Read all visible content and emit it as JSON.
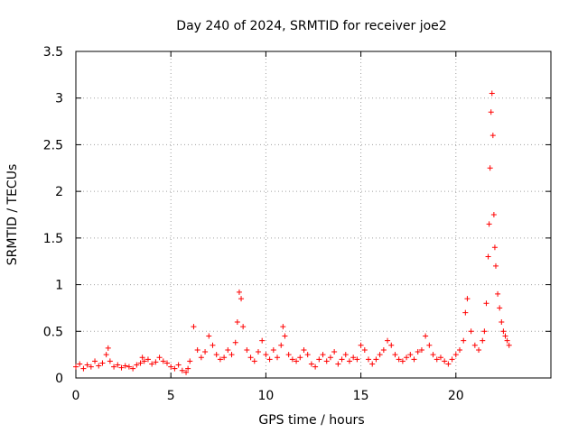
{
  "chart_data": {
    "type": "scatter",
    "title": "Day 240 of 2024, SRMTID for receiver joe2",
    "xlabel": "GPS time / hours",
    "ylabel": "SRMTID / TECUs",
    "xlim": [
      0,
      25
    ],
    "ylim": [
      0,
      3.5
    ],
    "xticks": [
      0,
      5,
      10,
      15,
      20
    ],
    "xtick_labels": [
      "0",
      "5",
      "10",
      "15",
      "20"
    ],
    "yticks": [
      0,
      0.5,
      1,
      1.5,
      2,
      2.5,
      3,
      3.5
    ],
    "ytick_labels": [
      "0",
      "0.5",
      "1",
      "1.5",
      "2",
      "2.5",
      "3",
      "3.5"
    ],
    "grid": true,
    "marker": "+",
    "color": "#ff0000",
    "series": [
      {
        "name": "SRMTID",
        "x": [
          0.0,
          0.2,
          0.4,
          0.6,
          0.8,
          1.0,
          1.2,
          1.4,
          1.6,
          1.7,
          1.8,
          2.0,
          2.2,
          2.4,
          2.6,
          2.8,
          3.0,
          3.2,
          3.4,
          3.5,
          3.6,
          3.8,
          4.0,
          4.2,
          4.4,
          4.6,
          4.8,
          5.0,
          5.2,
          5.4,
          5.6,
          5.8,
          5.9,
          6.0,
          6.2,
          6.4,
          6.6,
          6.8,
          7.0,
          7.2,
          7.4,
          7.6,
          7.8,
          8.0,
          8.2,
          8.4,
          8.5,
          8.6,
          8.7,
          8.8,
          9.0,
          9.2,
          9.4,
          9.6,
          9.8,
          10.0,
          10.2,
          10.4,
          10.6,
          10.8,
          10.9,
          11.0,
          11.2,
          11.4,
          11.6,
          11.8,
          12.0,
          12.2,
          12.4,
          12.6,
          12.8,
          13.0,
          13.2,
          13.4,
          13.6,
          13.8,
          14.0,
          14.2,
          14.4,
          14.6,
          14.8,
          15.0,
          15.2,
          15.4,
          15.6,
          15.8,
          16.0,
          16.2,
          16.4,
          16.6,
          16.8,
          17.0,
          17.2,
          17.4,
          17.6,
          17.8,
          18.0,
          18.2,
          18.4,
          18.6,
          18.8,
          19.0,
          19.2,
          19.4,
          19.6,
          19.8,
          20.0,
          20.2,
          20.4,
          20.5,
          20.6,
          20.8,
          21.0,
          21.2,
          21.4,
          21.5,
          21.6,
          21.7,
          21.75,
          21.8,
          21.85,
          21.9,
          21.95,
          22.0,
          22.05,
          22.1,
          22.2,
          22.3,
          22.4,
          22.5,
          22.6,
          22.7,
          22.8
        ],
        "y": [
          0.12,
          0.15,
          0.1,
          0.14,
          0.12,
          0.18,
          0.13,
          0.16,
          0.25,
          0.32,
          0.18,
          0.12,
          0.14,
          0.11,
          0.13,
          0.12,
          0.1,
          0.14,
          0.16,
          0.22,
          0.18,
          0.2,
          0.15,
          0.17,
          0.22,
          0.18,
          0.16,
          0.12,
          0.1,
          0.14,
          0.08,
          0.06,
          0.1,
          0.18,
          0.55,
          0.3,
          0.22,
          0.28,
          0.45,
          0.35,
          0.25,
          0.2,
          0.22,
          0.3,
          0.25,
          0.38,
          0.6,
          0.92,
          0.85,
          0.55,
          0.3,
          0.22,
          0.18,
          0.28,
          0.4,
          0.25,
          0.2,
          0.3,
          0.22,
          0.35,
          0.55,
          0.45,
          0.25,
          0.2,
          0.18,
          0.22,
          0.3,
          0.25,
          0.15,
          0.12,
          0.2,
          0.25,
          0.18,
          0.22,
          0.28,
          0.15,
          0.2,
          0.25,
          0.18,
          0.22,
          0.2,
          0.35,
          0.3,
          0.2,
          0.15,
          0.2,
          0.25,
          0.3,
          0.4,
          0.35,
          0.25,
          0.2,
          0.18,
          0.22,
          0.25,
          0.2,
          0.28,
          0.3,
          0.45,
          0.35,
          0.25,
          0.2,
          0.22,
          0.18,
          0.15,
          0.2,
          0.25,
          0.3,
          0.4,
          0.7,
          0.85,
          0.5,
          0.35,
          0.3,
          0.4,
          0.5,
          0.8,
          1.3,
          1.65,
          2.25,
          2.85,
          3.05,
          2.6,
          1.75,
          1.4,
          1.2,
          0.9,
          0.75,
          0.6,
          0.5,
          0.45,
          0.4,
          0.35
        ]
      }
    ]
  }
}
